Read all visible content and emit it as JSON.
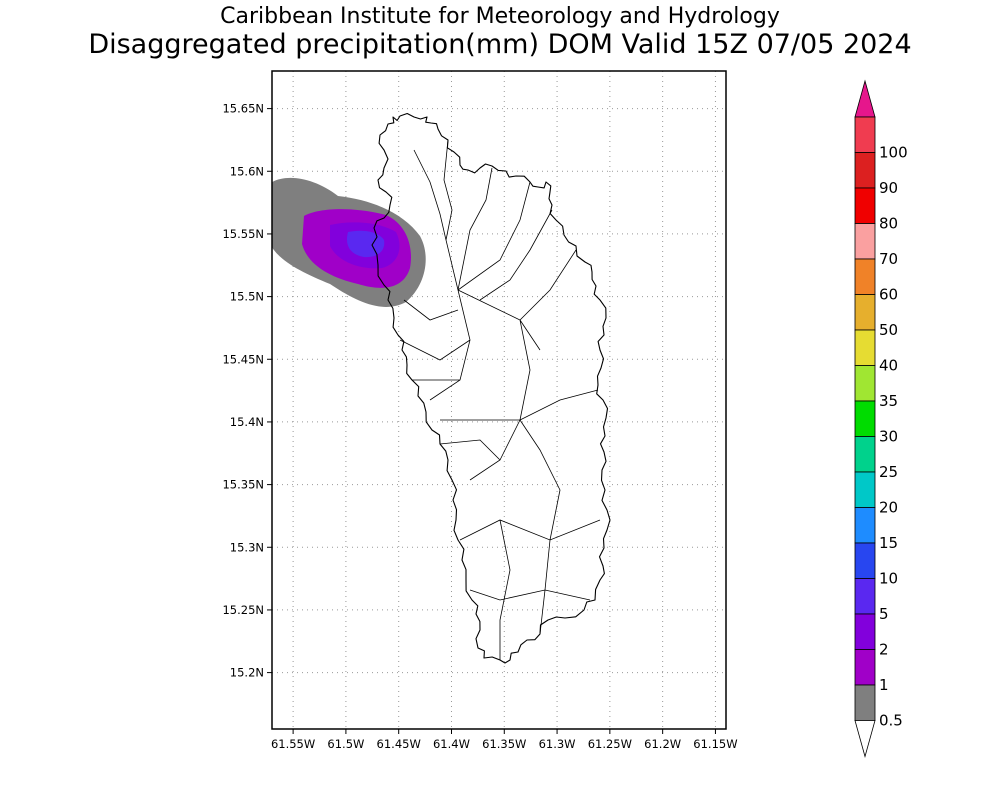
{
  "header": {
    "institute": "Caribbean Institute for Meteorology and Hydrology",
    "product": "Disaggregated precipitation(mm) DOM Valid 15Z 07/05 2024"
  },
  "map": {
    "lon_range": [
      -61.57,
      -61.14
    ],
    "lat_range": [
      15.155,
      15.68
    ],
    "lon_ticks": [
      "61.55W",
      "61.5W",
      "61.45W",
      "61.4W",
      "61.35W",
      "61.3W",
      "61.25W",
      "61.2W",
      "61.15W"
    ],
    "lat_ticks": [
      "15.65N",
      "15.6N",
      "15.55N",
      "15.5N",
      "15.45N",
      "15.4N",
      "15.35N",
      "15.3N",
      "15.25N",
      "15.2N"
    ],
    "gridlines": "dotted",
    "island_outline_color": "#000000"
  },
  "precip_area": {
    "center_lon": -61.498,
    "center_lat": 15.543,
    "levels": [
      {
        "threshold": "0.5",
        "color": "#7f7f7f"
      },
      {
        "threshold": "1",
        "color": "#a000c8"
      },
      {
        "threshold": "2",
        "color": "#8200dc"
      },
      {
        "threshold": "5",
        "color": "#5a28f0"
      }
    ]
  },
  "colorbar": {
    "levels": [
      {
        "label": "0.5",
        "color": "#7f7f7f"
      },
      {
        "label": "1",
        "color": "#a000c8"
      },
      {
        "label": "2",
        "color": "#8200dc"
      },
      {
        "label": "5",
        "color": "#5a28f0"
      },
      {
        "label": "10",
        "color": "#2846f0"
      },
      {
        "label": "15",
        "color": "#1e8cff"
      },
      {
        "label": "20",
        "color": "#00c8c8"
      },
      {
        "label": "25",
        "color": "#00d28c"
      },
      {
        "label": "30",
        "color": "#00dc00"
      },
      {
        "label": "35",
        "color": "#a0e632"
      },
      {
        "label": "40",
        "color": "#e6dc32"
      },
      {
        "label": "50",
        "color": "#e6af2d"
      },
      {
        "label": "60",
        "color": "#f08228"
      },
      {
        "label": "70",
        "color": "#faa0a0"
      },
      {
        "label": "80",
        "color": "#f00000"
      },
      {
        "label": "90",
        "color": "#dc2020"
      },
      {
        "label": "100",
        "color": "#f03c50"
      }
    ],
    "under_color": "#ffffff",
    "over_color": "#e6168c"
  }
}
